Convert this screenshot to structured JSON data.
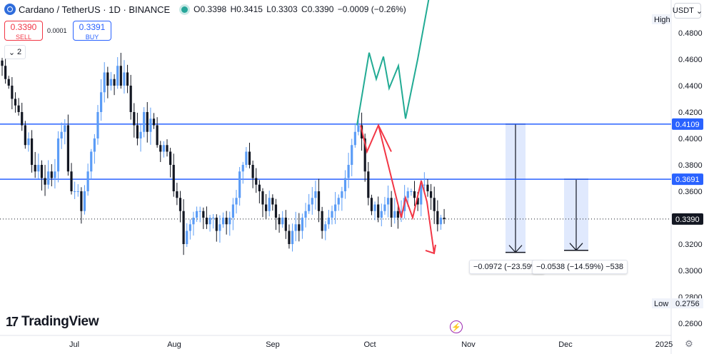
{
  "header": {
    "title": "Cardano / TetherUS · 1D · BINANCE",
    "open_label": "O",
    "open": "0.3398",
    "high_label": "H",
    "high": "0.3415",
    "low_label": "L",
    "low": "0.3303",
    "close_label": "C",
    "close": "0.3390",
    "change": "−0.0009 (−0.26%)"
  },
  "trade": {
    "sell_price": "0.3390",
    "sell_label": "SELL",
    "spread": "0.0001",
    "buy_price": "0.3391",
    "buy_label": "BUY"
  },
  "indicator_toggle": {
    "count": "2"
  },
  "currency": {
    "label": "USDT",
    "icon": "chevron-down-icon"
  },
  "brand": {
    "name": "TradingView"
  },
  "colors": {
    "up": "#5b9cf6",
    "down": "#131722",
    "level": "#2962ff",
    "path_up": "#22ab94",
    "path_down": "#f23645",
    "measure_fill": "#dbe5fd",
    "accent": "#2962ff"
  },
  "chart_data": {
    "type": "candlestick",
    "symbol": "ADAUSDT",
    "y_axis_ticks": [
      "0.4800",
      "0.4600",
      "0.4400",
      "0.4200",
      "0.4000",
      "0.3800",
      "0.3600",
      "0.3200",
      "0.3000",
      "0.2800",
      "0.2600"
    ],
    "x_axis_ticks": [
      "Jul",
      "Aug",
      "Sep",
      "Oct",
      "Nov",
      "Dec",
      "2025"
    ],
    "ylim": [
      0.25,
      0.5
    ],
    "price_labels": [
      {
        "kind": "high",
        "label": "High"
      },
      {
        "kind": "level",
        "value": "0.4109"
      },
      {
        "kind": "level",
        "value": "0.3691"
      },
      {
        "kind": "last",
        "value": "0.3390"
      },
      {
        "kind": "low",
        "label": "Low",
        "value": "0.2756"
      }
    ],
    "horizontal_levels": [
      0.4109,
      0.3691
    ],
    "last_price": 0.339,
    "close_series": [
      0.455,
      0.445,
      0.44,
      0.43,
      0.425,
      0.42,
      0.41,
      0.395,
      0.4,
      0.38,
      0.375,
      0.38,
      0.37,
      0.365,
      0.375,
      0.37,
      0.375,
      0.4,
      0.405,
      0.41,
      0.375,
      0.36,
      0.36,
      0.36,
      0.345,
      0.36,
      0.375,
      0.39,
      0.4,
      0.42,
      0.435,
      0.45,
      0.44,
      0.445,
      0.44,
      0.455,
      0.44,
      0.45,
      0.44,
      0.42,
      0.41,
      0.4,
      0.405,
      0.42,
      0.405,
      0.415,
      0.41,
      0.395,
      0.39,
      0.395,
      0.39,
      0.38,
      0.36,
      0.355,
      0.345,
      0.32,
      0.33,
      0.335,
      0.34,
      0.345,
      0.345,
      0.34,
      0.335,
      0.34,
      0.34,
      0.33,
      0.335,
      0.34,
      0.335,
      0.34,
      0.35,
      0.355,
      0.375,
      0.38,
      0.39,
      0.38,
      0.37,
      0.365,
      0.36,
      0.35,
      0.345,
      0.355,
      0.35,
      0.34,
      0.335,
      0.34,
      0.33,
      0.32,
      0.33,
      0.335,
      0.33,
      0.34,
      0.345,
      0.35,
      0.355,
      0.36,
      0.345,
      0.33,
      0.335,
      0.34,
      0.345,
      0.35,
      0.355,
      0.36,
      0.37,
      0.38,
      0.395,
      0.405,
      0.41,
      0.4,
      0.375,
      0.355,
      0.345,
      0.35,
      0.34,
      0.345,
      0.35,
      0.355,
      0.34,
      0.345,
      0.34,
      0.345,
      0.355,
      0.36,
      0.36,
      0.355,
      0.35,
      0.365,
      0.365,
      0.36,
      0.355,
      0.345,
      0.335,
      0.34,
      0.339
    ],
    "projected_paths": [
      {
        "direction": "up",
        "values": [
          0.41,
          0.465,
          0.445,
          0.462,
          0.438,
          0.455,
          0.415,
          0.46,
          0.51
        ]
      },
      {
        "direction": "down",
        "values": [
          0.41,
          0.39,
          0.41,
          0.39,
          0.41,
          0.34,
          0.355,
          0.34,
          0.368,
          0.352,
          0.313
        ]
      }
    ],
    "measurements": [
      {
        "from": 0.4109,
        "to": 0.3137,
        "label": "−0.0972 (−23.59%)"
      },
      {
        "from": 0.3691,
        "to": 0.3153,
        "label": "−0.0538 (−14.59%) −538"
      }
    ]
  }
}
